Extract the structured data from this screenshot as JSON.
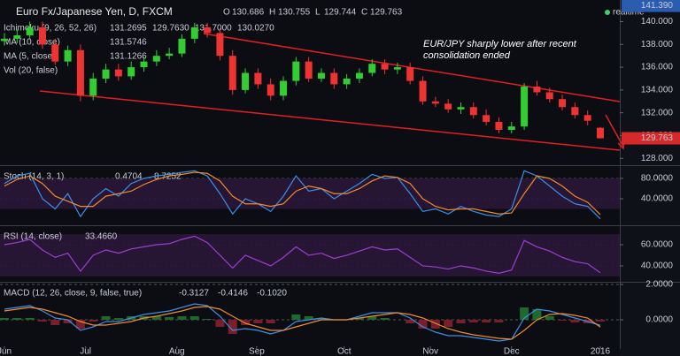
{
  "chart_data": [
    {
      "type": "candlestick",
      "title": "Euro Fx/Japanese Yen, D, FXCM",
      "ohlc_header": [
        {
          "key": "O",
          "value": "130.686"
        },
        {
          "key": "H",
          "value": "130.755"
        },
        {
          "key": "L",
          "value": "129.744"
        },
        {
          "key": "C",
          "value": "129.763"
        }
      ],
      "status": "realtime",
      "indicators": [
        {
          "name": "Ichimoku (9, 26, 52, 26)",
          "readings": [
            "131.2695",
            "129.7630",
            "131.7000",
            "130.0270"
          ]
        },
        {
          "name": "MA (10, close)",
          "readings": [
            "131.5746"
          ]
        },
        {
          "name": "MA (5, close)",
          "readings": [
            "131.1266"
          ]
        },
        {
          "name": "Vol (20, false)",
          "readings": []
        }
      ],
      "annotation": "EUR/JPY sharply lower after recent consolidation ended",
      "open": [
        138.3,
        138.5,
        138.8,
        139.5,
        138.0,
        136.5,
        137.5,
        133.5,
        135.0,
        135.8,
        135.2,
        136.0,
        136.5,
        137.0,
        137.2,
        138.5,
        139.5,
        139.0,
        137.0,
        134.0,
        135.5,
        134.5,
        133.5,
        134.8,
        136.5,
        135.0,
        135.5,
        134.5,
        135.0,
        135.5,
        136.3,
        135.8,
        136.0,
        134.8,
        133.0,
        132.8,
        132.3,
        132.5,
        131.8,
        131.2,
        130.5,
        130.8,
        134.3,
        133.8,
        133.2,
        132.5,
        131.8,
        130.686
      ],
      "high": [
        139.0,
        139.3,
        140.0,
        140.0,
        138.5,
        137.9,
        138.0,
        135.5,
        136.3,
        136.3,
        136.5,
        136.9,
        137.5,
        137.7,
        138.9,
        139.9,
        139.9,
        139.4,
        137.5,
        135.9,
        135.9,
        135.0,
        135.2,
        136.9,
        136.9,
        135.9,
        135.9,
        135.4,
        135.9,
        136.7,
        136.7,
        136.4,
        136.4,
        135.2,
        133.4,
        133.2,
        132.9,
        132.9,
        132.3,
        131.6,
        131.2,
        134.6,
        134.8,
        134.2,
        133.6,
        132.9,
        132.2,
        130.755
      ],
      "low": [
        137.9,
        138.1,
        138.5,
        137.6,
        136.2,
        136.1,
        133.0,
        133.1,
        134.6,
        134.8,
        134.9,
        135.6,
        136.1,
        136.7,
        136.9,
        138.1,
        138.6,
        136.6,
        133.6,
        133.7,
        134.1,
        133.1,
        133.1,
        134.4,
        134.7,
        134.7,
        134.1,
        134.1,
        134.6,
        135.2,
        135.4,
        135.4,
        134.5,
        132.7,
        132.5,
        132.0,
        131.9,
        131.5,
        130.9,
        130.2,
        130.2,
        130.5,
        133.5,
        132.9,
        132.2,
        131.5,
        130.9,
        129.744
      ],
      "close": [
        138.5,
        138.8,
        139.5,
        138.0,
        136.5,
        137.5,
        133.5,
        135.0,
        135.8,
        135.2,
        136.0,
        136.5,
        137.0,
        137.2,
        138.5,
        139.5,
        139.0,
        137.0,
        134.0,
        135.5,
        134.5,
        133.5,
        134.8,
        136.5,
        135.0,
        135.5,
        134.5,
        135.0,
        135.5,
        136.3,
        135.8,
        136.0,
        134.8,
        133.0,
        132.8,
        132.3,
        132.5,
        131.8,
        131.2,
        130.5,
        130.8,
        134.3,
        133.8,
        133.2,
        132.5,
        131.8,
        131.3,
        129.763
      ],
      "up_color": "#33cc33",
      "down_color": "#ee3333",
      "ylim": [
        127.4,
        141.9
      ],
      "yticks": [
        {
          "value": 128,
          "label": "128.000"
        },
        {
          "value": 130,
          "label": "130.000"
        },
        {
          "value": 132,
          "label": "132.000"
        },
        {
          "value": 134,
          "label": "134.000"
        },
        {
          "value": 136,
          "label": "136.000"
        },
        {
          "value": 138,
          "label": "138.000"
        },
        {
          "value": 140,
          "label": "140.000"
        }
      ],
      "marker_top": {
        "value": 141.39,
        "label": "141.390"
      },
      "marker_last": {
        "value": 129.763,
        "label": "129.763"
      },
      "xlim": [
        0,
        47
      ],
      "xticks": [
        {
          "value": 0,
          "label": "Jun"
        },
        {
          "value": 6.4,
          "label": "Jul"
        },
        {
          "value": 13.6,
          "label": "Aug"
        },
        {
          "value": 19.9,
          "label": "Sep"
        },
        {
          "value": 26.8,
          "label": "Oct"
        },
        {
          "value": 33.6,
          "label": "Nov"
        },
        {
          "value": 40,
          "label": "Dec"
        },
        {
          "value": 47,
          "label": "2016"
        }
      ]
    },
    {
      "type": "line",
      "title": "Stoch (14, 3, 1)",
      "readings": [
        "0.4704",
        "8.7252"
      ],
      "band": [
        20,
        80
      ],
      "series": [
        {
          "name": "%K",
          "color": "#3b8fe8",
          "values": [
            70,
            85,
            90,
            40,
            20,
            50,
            5,
            40,
            60,
            45,
            70,
            80,
            85,
            88,
            92,
            95,
            85,
            50,
            10,
            40,
            30,
            15,
            45,
            85,
            55,
            60,
            40,
            55,
            70,
            88,
            80,
            82,
            50,
            15,
            20,
            10,
            25,
            15,
            8,
            5,
            20,
            95,
            85,
            65,
            45,
            30,
            25,
            0.4704
          ]
        },
        {
          "name": "%D",
          "color": "#f08a2c",
          "values": [
            65,
            78,
            85,
            70,
            45,
            35,
            25,
            25,
            45,
            50,
            55,
            68,
            78,
            85,
            88,
            92,
            90,
            75,
            45,
            30,
            30,
            25,
            30,
            55,
            65,
            60,
            50,
            50,
            60,
            75,
            85,
            82,
            70,
            40,
            25,
            18,
            20,
            20,
            15,
            10,
            12,
            50,
            85,
            80,
            65,
            45,
            33,
            8.7252
          ]
        }
      ],
      "ylim": [
        -12.2,
        104.3
      ],
      "yticks": [
        {
          "value": 80,
          "label": "80.0000"
        },
        {
          "value": 40,
          "label": "40.0000"
        }
      ]
    },
    {
      "type": "line",
      "title": "RSI (14, close)",
      "readings": [
        "33.4660"
      ],
      "band": [
        30,
        70
      ],
      "series": [
        {
          "name": "RSI",
          "color": "#9b3fd1",
          "values": [
            60,
            62,
            65,
            55,
            48,
            52,
            35,
            50,
            55,
            52,
            56,
            58,
            60,
            61,
            65,
            68,
            62,
            50,
            38,
            50,
            45,
            40,
            48,
            58,
            50,
            52,
            47,
            50,
            54,
            58,
            55,
            56,
            48,
            40,
            39,
            37,
            40,
            38,
            35,
            33,
            36,
            64,
            58,
            54,
            48,
            44,
            42,
            33.466
          ]
        }
      ],
      "ylim": [
        25.8,
        77.5
      ],
      "yticks": [
        {
          "value": 60,
          "label": "60.0000"
        },
        {
          "value": 40,
          "label": "40.0000"
        }
      ]
    },
    {
      "type": "macd",
      "title": "MACD (12, 26, close, 9, false, true)",
      "readings": [
        "-0.3127",
        "-0.4146",
        "-0.1020"
      ],
      "series": [
        {
          "name": "MACD",
          "color": "#3b8fe8",
          "values": [
            0.6,
            0.7,
            0.8,
            0.5,
            0.1,
            0.0,
            -0.6,
            -0.4,
            -0.1,
            -0.1,
            0.1,
            0.3,
            0.4,
            0.5,
            0.7,
            0.9,
            0.8,
            0.2,
            -0.6,
            -0.5,
            -0.6,
            -0.8,
            -0.6,
            -0.1,
            0,
            0.1,
            0,
            0,
            0.2,
            0.4,
            0.4,
            0.4,
            0.1,
            -0.4,
            -0.7,
            -0.9,
            -0.9,
            -1.0,
            -1.1,
            -1.2,
            -1.1,
            0.1,
            0.6,
            0.5,
            0.3,
            0.1,
            -0.1,
            -0.3127
          ]
        },
        {
          "name": "Signal",
          "color": "#f08a2c",
          "values": [
            0.5,
            0.6,
            0.7,
            0.6,
            0.4,
            0.2,
            -0.1,
            -0.3,
            -0.3,
            -0.2,
            -0.1,
            0.1,
            0.2,
            0.35,
            0.5,
            0.7,
            0.75,
            0.6,
            0.2,
            -0.2,
            -0.4,
            -0.6,
            -0.6,
            -0.4,
            -0.2,
            0,
            0,
            0,
            0.1,
            0.2,
            0.3,
            0.4,
            0.3,
            0.1,
            -0.2,
            -0.5,
            -0.7,
            -0.85,
            -0.95,
            -1.05,
            -1.1,
            -0.6,
            0,
            0.3,
            0.35,
            0.25,
            0.1,
            -0.4146
          ]
        }
      ],
      "histogram": [
        0.1,
        0.1,
        0.1,
        -0.1,
        -0.3,
        -0.2,
        -0.5,
        -0.1,
        0.2,
        0.1,
        0.2,
        0.2,
        0.2,
        0.15,
        0.2,
        0.2,
        0.05,
        -0.4,
        -0.8,
        -0.3,
        -0.2,
        -0.2,
        0,
        0.3,
        0.2,
        0.1,
        0,
        0,
        0.1,
        0.2,
        0.1,
        0,
        -0.2,
        -0.5,
        -0.5,
        -0.4,
        -0.2,
        -0.15,
        -0.15,
        -0.15,
        0,
        0.7,
        0.6,
        0.2,
        -0.05,
        -0.15,
        -0.2,
        -0.102
      ],
      "hist_colors": [
        "#7a1f2a",
        "#1f6a2a"
      ],
      "ylim": [
        -1.65,
        2.1
      ],
      "yticks": [
        {
          "value": 2,
          "label": "2.0000"
        },
        {
          "value": 0,
          "label": "0.0000"
        }
      ]
    }
  ]
}
